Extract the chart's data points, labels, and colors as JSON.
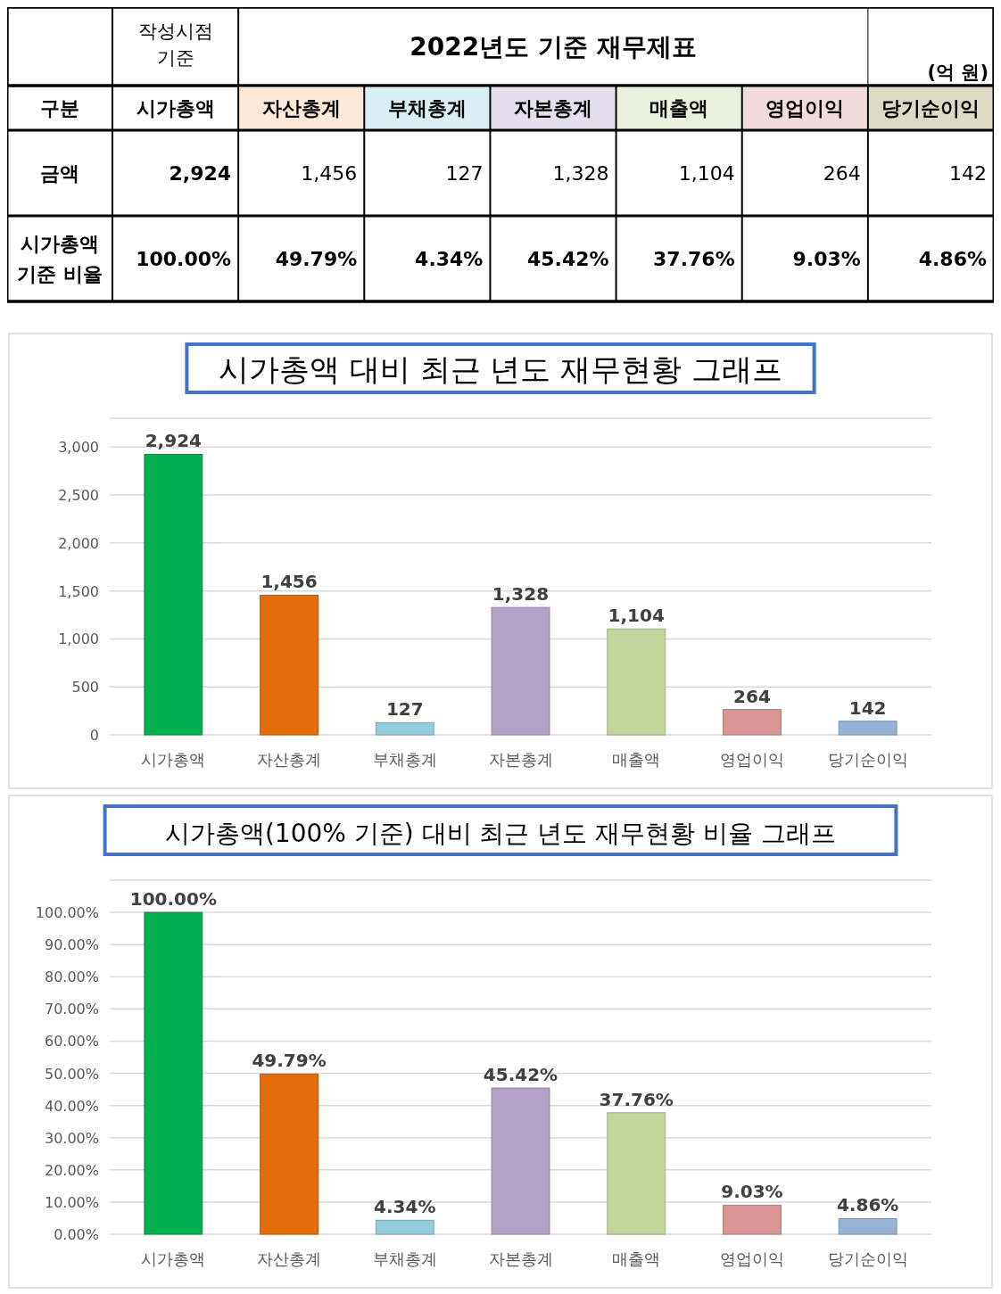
{
  "chart_data": [
    {
      "type": "other",
      "title": "2022년도 기준 재무제표",
      "ylabel": "구분",
      "annotations": [
        "작성시점 기준",
        "(억 원)"
      ],
      "categories": [
        "시가총액",
        "자산총계",
        "부채총계",
        "자본총계",
        "매출액",
        "영업이익",
        "당기순이익"
      ],
      "y_categories": [
        "금액",
        "시가총액 기준 비율"
      ],
      "cell_labels": [
        [
          "2,924",
          "1,456",
          "127",
          "1,328",
          "1,104",
          "264",
          "142"
        ],
        [
          "100.00%",
          "49.79%",
          "4.34%",
          "45.42%",
          "37.76%",
          "9.03%",
          "4.86%"
        ]
      ]
    },
    {
      "type": "bar",
      "title": "시가총액 대비 최근 년도 재무현황 그래프",
      "grid": "y",
      "categories": [
        "시가총액",
        "자산총계",
        "부채총계",
        "자본총계",
        "매출액",
        "영업이익",
        "당기순이익"
      ],
      "values": [
        2924,
        1456,
        127,
        1328,
        1104,
        264,
        142
      ],
      "colors": [
        "#00b050",
        "#e46c0a",
        "#93cddd",
        "#b3a2c7",
        "#c3d69b",
        "#d99694",
        "#95b3d7"
      ],
      "value_labels": [
        "2,924",
        "1,456",
        "127",
        "1,328",
        "1,104",
        "264",
        "142"
      ],
      "ylim": [
        0,
        3300
      ],
      "yticks": [
        0,
        {
          "value": 500,
          "label": "500"
        },
        {
          "value": 1000,
          "label": "1,000"
        },
        {
          "value": 1500,
          "label": "1,500"
        },
        {
          "value": 2000,
          "label": "2,000"
        },
        {
          "value": 2500,
          "label": "2,500"
        },
        {
          "value": 3000,
          "label": "3,000"
        }
      ]
    },
    {
      "type": "bar",
      "title": "시가총액(100% 기준) 대비 최근 년도 재무현황 비율 그래프",
      "grid": "y",
      "categories": [
        "시가총액",
        "자산총계",
        "부채총계",
        "자본총계",
        "매출액",
        "영업이익",
        "당기순이익"
      ],
      "values": [
        100,
        49.79,
        4.34,
        45.42,
        37.76,
        9.03,
        4.86
      ],
      "colors": [
        "#00b050",
        "#e46c0a",
        "#93cddd",
        "#b3a2c7",
        "#c3d69b",
        "#d99694",
        "#95b3d7"
      ],
      "value_labels": [
        "100.00%",
        "49.79%",
        "4.34%",
        "45.42%",
        "37.76%",
        "9.03%",
        "4.86%"
      ],
      "ylim": [
        0,
        110
      ],
      "yticks": [
        {
          "value": 0,
          "label": "0.00%"
        },
        {
          "value": 10,
          "label": "10.00%"
        },
        {
          "value": 20,
          "label": "20.00%"
        },
        {
          "value": 30,
          "label": "30.00%"
        },
        {
          "value": 40,
          "label": "40.00%"
        },
        {
          "value": 50,
          "label": "50.00%"
        },
        {
          "value": 60,
          "label": "60.00%"
        },
        {
          "value": 70,
          "label": "70.00%"
        },
        {
          "value": 80,
          "label": "80.00%"
        },
        {
          "value": 90,
          "label": "90.00%"
        },
        {
          "value": 100,
          "label": "100.00%"
        }
      ]
    }
  ]
}
